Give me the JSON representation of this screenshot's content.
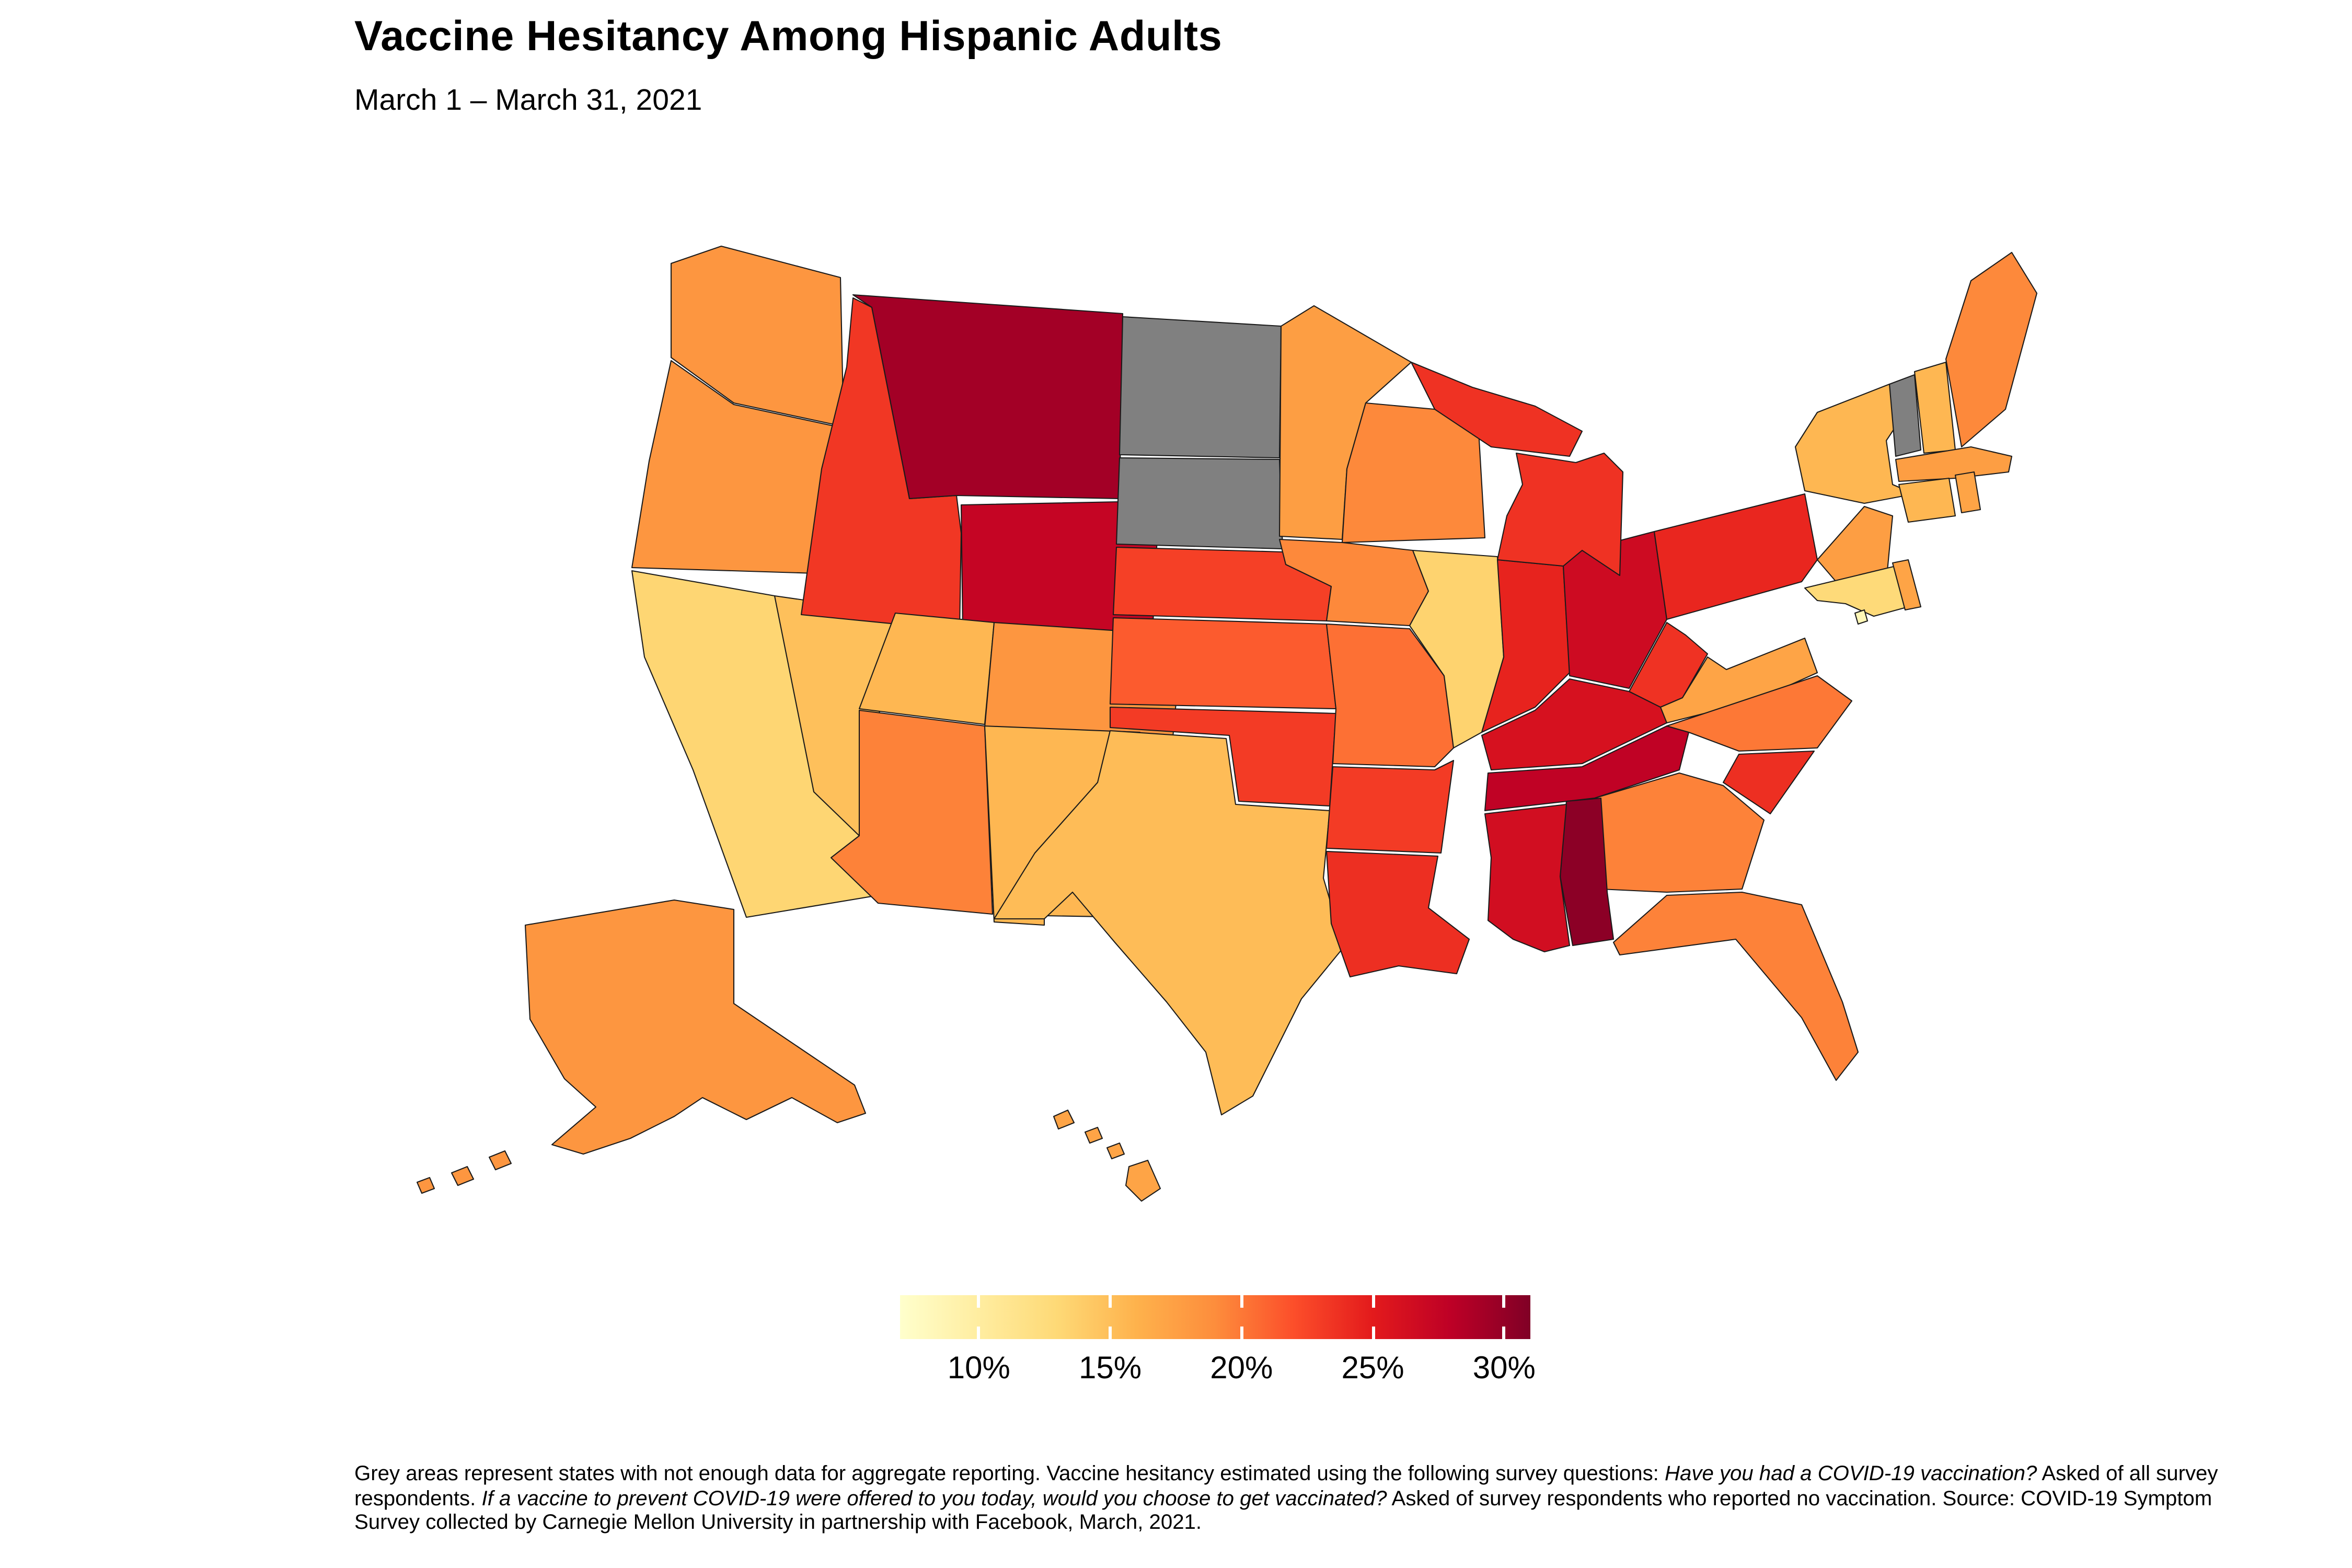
{
  "header": {
    "title": "Vaccine Hesitancy Among Hispanic Adults",
    "subtitle": "March 1 – March 31, 2021"
  },
  "chart_data": {
    "type": "choropleth",
    "title": "Vaccine Hesitancy Among Hispanic Adults",
    "subtitle": "March 1 – March 31, 2021",
    "metric": "Estimated percent vaccine hesitant among Hispanic adults, by state",
    "legend": {
      "tick_labels": [
        "10%",
        "15%",
        "20%",
        "25%",
        "30%"
      ],
      "tick_values": [
        10,
        15,
        20,
        25,
        30
      ],
      "domain": [
        7,
        31
      ],
      "palette": "YlOrRd",
      "stops": [
        "#FFFFCC",
        "#FFEDA0",
        "#FED976",
        "#FEB24C",
        "#FD8D3C",
        "#FC4E2A",
        "#E31A1C",
        "#BD0026",
        "#800026"
      ],
      "no_data_color": "#808080",
      "no_data_label": "Grey areas: not enough data for aggregate reporting"
    },
    "states": [
      {
        "id": "WA",
        "name": "Washington",
        "value": 18.3
      },
      {
        "id": "OR",
        "name": "Oregon",
        "value": 18.3
      },
      {
        "id": "CA",
        "name": "California",
        "value": 13.2
      },
      {
        "id": "NV",
        "name": "Nevada",
        "value": 14.9
      },
      {
        "id": "ID",
        "name": "Idaho",
        "value": 23.3
      },
      {
        "id": "MT",
        "name": "Montana",
        "value": 29.3
      },
      {
        "id": "WY",
        "name": "Wyoming",
        "value": 27.4
      },
      {
        "id": "UT",
        "name": "Utah",
        "value": 15.6
      },
      {
        "id": "CO",
        "name": "Colorado",
        "value": 18.3
      },
      {
        "id": "AZ",
        "name": "Arizona",
        "value": 19.5
      },
      {
        "id": "NM",
        "name": "New Mexico",
        "value": 15.6
      },
      {
        "id": "ND",
        "name": "North Dakota",
        "value": null
      },
      {
        "id": "SD",
        "name": "South Dakota",
        "value": null
      },
      {
        "id": "NE",
        "name": "Nebraska",
        "value": 22.8
      },
      {
        "id": "KS",
        "name": "Kansas",
        "value": 21.4
      },
      {
        "id": "OK",
        "name": "Oklahoma",
        "value": 23.1
      },
      {
        "id": "TX",
        "name": "Texas",
        "value": 15.2
      },
      {
        "id": "MN",
        "name": "Minnesota",
        "value": 17.6
      },
      {
        "id": "IA",
        "name": "Iowa",
        "value": 19.2
      },
      {
        "id": "MO",
        "name": "Missouri",
        "value": 20.4
      },
      {
        "id": "AR",
        "name": "Arkansas",
        "value": 23.1
      },
      {
        "id": "LA",
        "name": "Louisiana",
        "value": 23.8
      },
      {
        "id": "WI",
        "name": "Wisconsin",
        "value": 19.2
      },
      {
        "id": "IL",
        "name": "Illinois",
        "value": 13.5
      },
      {
        "id": "MI",
        "name": "Michigan",
        "value": 23.6
      },
      {
        "id": "IN",
        "name": "Indiana",
        "value": 24.5
      },
      {
        "id": "OH",
        "name": "Ohio",
        "value": 26.7
      },
      {
        "id": "KY",
        "name": "Kentucky",
        "value": 26.0
      },
      {
        "id": "TN",
        "name": "Tennessee",
        "value": 27.8
      },
      {
        "id": "MS",
        "name": "Mississippi",
        "value": 26.4
      },
      {
        "id": "AL",
        "name": "Alabama",
        "value": 30.4
      },
      {
        "id": "GA",
        "name": "Georgia",
        "value": 19.5
      },
      {
        "id": "FL",
        "name": "Florida",
        "value": 19.5
      },
      {
        "id": "SC",
        "name": "South Carolina",
        "value": 23.8
      },
      {
        "id": "NC",
        "name": "North Carolina",
        "value": 20.0
      },
      {
        "id": "VA",
        "name": "Virginia",
        "value": 17.1
      },
      {
        "id": "WV",
        "name": "West Virginia",
        "value": 23.6
      },
      {
        "id": "PA",
        "name": "Pennsylvania",
        "value": 24.3
      },
      {
        "id": "NY",
        "name": "New York",
        "value": 15.6
      },
      {
        "id": "NJ",
        "name": "New Jersey",
        "value": 17.6
      },
      {
        "id": "MD",
        "name": "Maryland",
        "value": 12.8
      },
      {
        "id": "DE",
        "name": "Delaware",
        "value": 17.1
      },
      {
        "id": "DC",
        "name": "District of Columbia",
        "value": 8.4
      },
      {
        "id": "VT",
        "name": "Vermont",
        "value": null
      },
      {
        "id": "NH",
        "name": "New Hampshire",
        "value": 15.6
      },
      {
        "id": "ME",
        "name": "Maine",
        "value": 19.2
      },
      {
        "id": "MA",
        "name": "Massachusetts",
        "value": 17.6
      },
      {
        "id": "CT",
        "name": "Connecticut",
        "value": 15.6
      },
      {
        "id": "RI",
        "name": "Rhode Island",
        "value": 17.1
      },
      {
        "id": "AK",
        "name": "Alaska",
        "value": 18.3
      },
      {
        "id": "HI",
        "name": "Hawaii",
        "value": 17.1
      }
    ]
  },
  "footnote": {
    "segments": [
      {
        "text": "Grey areas represent states with not enough data for aggregate reporting. Vaccine hesitancy estimated using the following survey questions: ",
        "italic": false
      },
      {
        "text": "Have you had a COVID-19 vaccination?",
        "italic": true
      },
      {
        "text": " Asked of all survey respondents. ",
        "italic": false
      },
      {
        "text": "If a vaccine to prevent COVID-19 were offered to you today, would you choose to get vaccinated?",
        "italic": true
      },
      {
        "text": " Asked of survey respondents who reported no vaccination. Source: COVID-19 Symptom Survey collected by Carnegie Mellon University in partnership with Facebook, March, 2021.",
        "italic": false
      }
    ]
  }
}
